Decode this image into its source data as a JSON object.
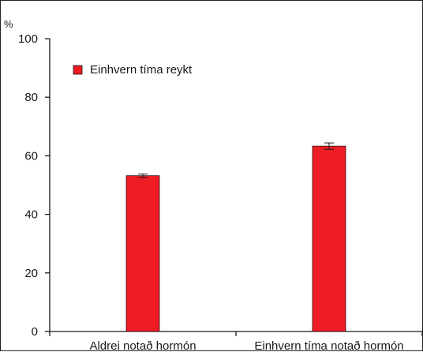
{
  "chart_data": {
    "type": "bar",
    "ylabel": "%",
    "ylim": [
      0,
      100
    ],
    "yticks": [
      0,
      20,
      40,
      60,
      80,
      100
    ],
    "categories": [
      "Aldrei notað hormón",
      "Einhvern tíma notað hormón"
    ],
    "series": [
      {
        "name": "Einhvern tíma reykt",
        "values": [
          53.2,
          63.3
        ],
        "error": [
          0.6,
          1.1
        ],
        "color": "#ee1c25"
      }
    ],
    "legend": "top-left",
    "grid": false
  }
}
